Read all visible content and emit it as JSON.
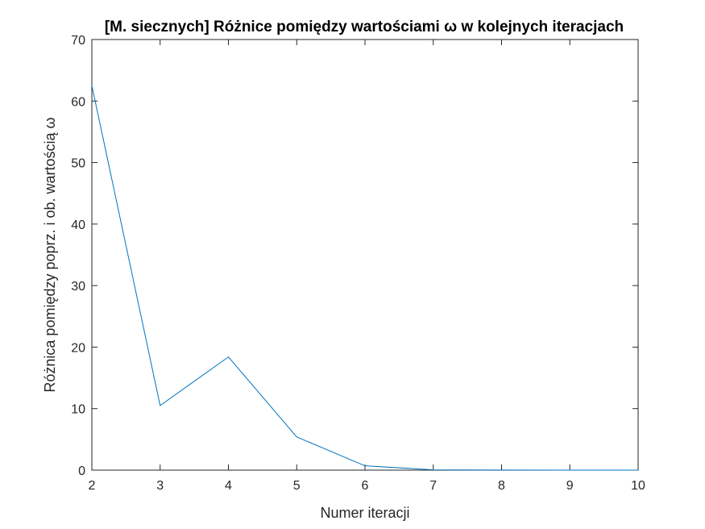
{
  "chart_data": {
    "type": "line",
    "title": "[M. siecznych] Różnice pomiędzy wartościami ω w kolejnych iteracjach",
    "xlabel": "Numer iteracji",
    "ylabel": "Różnica pomiędzy poprz. i ob. wartością ω",
    "xlim": [
      2,
      10
    ],
    "ylim": [
      0,
      70
    ],
    "xticks": [
      2,
      3,
      4,
      5,
      6,
      7,
      8,
      9,
      10
    ],
    "yticks": [
      0,
      10,
      20,
      30,
      40,
      50,
      60,
      70
    ],
    "grid": false,
    "series": [
      {
        "color": "#0072BD",
        "x": [
          2,
          3,
          4,
          5,
          6,
          7,
          8,
          9,
          10
        ],
        "y": [
          62.5,
          10.5,
          18.4,
          5.4,
          0.7,
          0.05,
          0.01,
          0.0,
          0.0
        ]
      }
    ]
  }
}
